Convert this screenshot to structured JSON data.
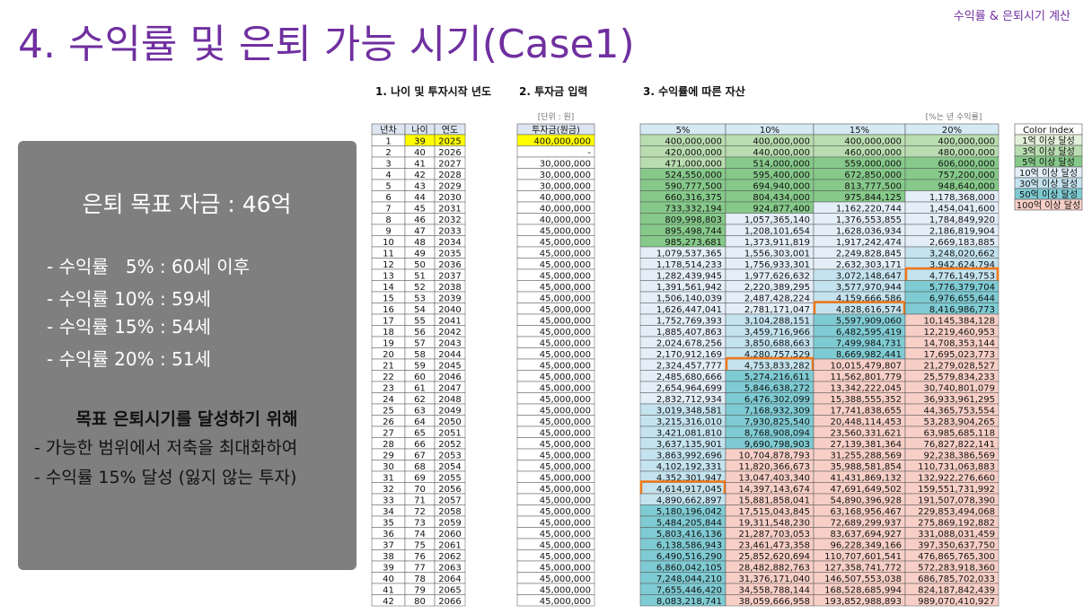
{
  "header": {
    "title": "4. 수익률 및 은퇴 가능 시기(Case1)",
    "top_right": "수익률 & 은퇴시기 계산"
  },
  "summary": {
    "goal": "은퇴 목표 자금 : 46억",
    "items": [
      "- 수익률   5% : 60세 이후",
      "- 수익률 10% : 59세",
      "- 수익률 15% : 54세",
      "- 수익률 20% : 51세"
    ],
    "subheading": "목표 은퇴시기를 달성하기 위해",
    "notes": [
      "- 가능한 범위에서 저축을 최대화하여",
      "- 수익률 15% 달성 (잃지 않는 투자)"
    ]
  },
  "sections": [
    "1. 나이 및 투자시작 년도",
    "2. 투자금 입력",
    "3. 수익률에 따른 자산"
  ],
  "unit_note": "[단위 : 원]",
  "rate_note": "[%는 년 수익률]",
  "table": {
    "columns": [
      "년차",
      "나이",
      "연도",
      "투자금(원금)",
      "5%",
      "10%",
      "15%",
      "20%"
    ],
    "rows": [
      [
        "1",
        "39",
        "2025",
        "400,000,000",
        "400,000,000",
        "400,000,000",
        "400,000,000",
        "400,000,000"
      ],
      [
        "2",
        "40",
        "2026",
        "-",
        "420,000,000",
        "440,000,000",
        "460,000,000",
        "480,000,000"
      ],
      [
        "3",
        "41",
        "2027",
        "30,000,000",
        "471,000,000",
        "514,000,000",
        "559,000,000",
        "606,000,000"
      ],
      [
        "4",
        "42",
        "2028",
        "30,000,000",
        "524,550,000",
        "595,400,000",
        "672,850,000",
        "757,200,000"
      ],
      [
        "5",
        "43",
        "2029",
        "30,000,000",
        "590,777,500",
        "694,940,000",
        "813,777,500",
        "948,640,000"
      ],
      [
        "6",
        "44",
        "2030",
        "40,000,000",
        "660,316,375",
        "804,434,000",
        "975,844,125",
        "1,178,368,000"
      ],
      [
        "7",
        "45",
        "2031",
        "40,000,000",
        "733,332,194",
        "924,877,400",
        "1,162,220,744",
        "1,454,041,600"
      ],
      [
        "8",
        "46",
        "2032",
        "40,000,000",
        "809,998,803",
        "1,057,365,140",
        "1,376,553,855",
        "1,784,849,920"
      ],
      [
        "9",
        "47",
        "2033",
        "45,000,000",
        "895,498,744",
        "1,208,101,654",
        "1,628,036,934",
        "2,186,819,904"
      ],
      [
        "10",
        "48",
        "2034",
        "45,000,000",
        "985,273,681",
        "1,373,911,819",
        "1,917,242,474",
        "2,669,183,885"
      ],
      [
        "11",
        "49",
        "2035",
        "45,000,000",
        "1,079,537,365",
        "1,556,303,001",
        "2,249,828,845",
        "3,248,020,662"
      ],
      [
        "12",
        "50",
        "2036",
        "45,000,000",
        "1,178,514,233",
        "1,756,933,301",
        "2,632,303,171",
        "3,942,624,794"
      ],
      [
        "13",
        "51",
        "2037",
        "45,000,000",
        "1,282,439,945",
        "1,977,626,632",
        "3,072,148,647",
        "4,776,149,753"
      ],
      [
        "14",
        "52",
        "2038",
        "45,000,000",
        "1,391,561,942",
        "2,220,389,295",
        "3,577,970,944",
        "5,776,379,704"
      ],
      [
        "15",
        "53",
        "2039",
        "45,000,000",
        "1,506,140,039",
        "2,487,428,224",
        "4,159,666,586",
        "6,976,655,644"
      ],
      [
        "16",
        "54",
        "2040",
        "45,000,000",
        "1,626,447,041",
        "2,781,171,047",
        "4,828,616,574",
        "8,416,986,773"
      ],
      [
        "17",
        "55",
        "2041",
        "45,000,000",
        "1,752,769,393",
        "3,104,288,151",
        "5,597,909,060",
        "10,145,384,128"
      ],
      [
        "18",
        "56",
        "2042",
        "45,000,000",
        "1,885,407,863",
        "3,459,716,966",
        "6,482,595,419",
        "12,219,460,953"
      ],
      [
        "19",
        "57",
        "2043",
        "45,000,000",
        "2,024,678,256",
        "3,850,688,663",
        "7,499,984,731",
        "14,708,353,144"
      ],
      [
        "20",
        "58",
        "2044",
        "45,000,000",
        "2,170,912,169",
        "4,280,757,529",
        "8,669,982,441",
        "17,695,023,773"
      ],
      [
        "21",
        "59",
        "2045",
        "45,000,000",
        "2,324,457,777",
        "4,753,833,282",
        "10,015,479,807",
        "21,279,028,527"
      ],
      [
        "22",
        "60",
        "2046",
        "45,000,000",
        "2,485,680,666",
        "5,274,216,611",
        "11,562,801,779",
        "25,579,834,233"
      ],
      [
        "23",
        "61",
        "2047",
        "45,000,000",
        "2,654,964,699",
        "5,846,638,272",
        "13,342,222,045",
        "30,740,801,079"
      ],
      [
        "24",
        "62",
        "2048",
        "45,000,000",
        "2,832,712,934",
        "6,476,302,099",
        "15,388,555,352",
        "36,933,961,295"
      ],
      [
        "25",
        "63",
        "2049",
        "45,000,000",
        "3,019,348,581",
        "7,168,932,309",
        "17,741,838,655",
        "44,365,753,554"
      ],
      [
        "26",
        "64",
        "2050",
        "45,000,000",
        "3,215,316,010",
        "7,930,825,540",
        "20,448,114,453",
        "53,283,904,265"
      ],
      [
        "27",
        "65",
        "2051",
        "45,000,000",
        "3,421,081,810",
        "8,768,908,094",
        "23,560,331,621",
        "63,985,685,118"
      ],
      [
        "28",
        "66",
        "2052",
        "45,000,000",
        "3,637,135,901",
        "9,690,798,903",
        "27,139,381,364",
        "76,827,822,141"
      ],
      [
        "29",
        "67",
        "2053",
        "45,000,000",
        "3,863,992,696",
        "10,704,878,793",
        "31,255,288,569",
        "92,238,386,569"
      ],
      [
        "30",
        "68",
        "2054",
        "45,000,000",
        "4,102,192,331",
        "11,820,366,673",
        "35,988,581,854",
        "110,731,063,883"
      ],
      [
        "31",
        "69",
        "2055",
        "45,000,000",
        "4,352,301,947",
        "13,047,403,340",
        "41,431,869,132",
        "132,922,276,660"
      ],
      [
        "32",
        "70",
        "2056",
        "45,000,000",
        "4,614,917,045",
        "14,397,143,674",
        "47,691,649,502",
        "159,551,731,992"
      ],
      [
        "33",
        "71",
        "2057",
        "45,000,000",
        "4,890,662,897",
        "15,881,858,041",
        "54,890,396,928",
        "191,507,078,390"
      ],
      [
        "34",
        "72",
        "2058",
        "45,000,000",
        "5,180,196,042",
        "17,515,043,845",
        "63,168,956,467",
        "229,853,494,068"
      ],
      [
        "35",
        "73",
        "2059",
        "45,000,000",
        "5,484,205,844",
        "19,311,548,230",
        "72,689,299,937",
        "275,869,192,882"
      ],
      [
        "36",
        "74",
        "2060",
        "45,000,000",
        "5,803,416,136",
        "21,287,703,053",
        "83,637,694,927",
        "331,088,031,459"
      ],
      [
        "37",
        "75",
        "2061",
        "45,000,000",
        "6,138,586,943",
        "23,461,473,358",
        "96,228,349,166",
        "397,350,637,750"
      ],
      [
        "38",
        "76",
        "2062",
        "45,000,000",
        "6,490,516,290",
        "25,852,620,694",
        "110,707,601,541",
        "476,865,765,300"
      ],
      [
        "39",
        "77",
        "2063",
        "45,000,000",
        "6,860,042,105",
        "28,482,882,763",
        "127,358,741,772",
        "572,283,918,360"
      ],
      [
        "40",
        "78",
        "2064",
        "45,000,000",
        "7,248,044,210",
        "31,376,171,040",
        "146,507,553,038",
        "686,785,702,033"
      ],
      [
        "41",
        "79",
        "2065",
        "45,000,000",
        "7,655,446,420",
        "34,558,788,144",
        "168,528,685,994",
        "824,187,842,439"
      ],
      [
        "42",
        "80",
        "2066",
        "45,000,000",
        "8,083,218,741",
        "38,059,666,958",
        "193,852,988,893",
        "989,070,410,927"
      ]
    ]
  },
  "legend": {
    "title": "Color Index",
    "items": [
      {
        "label": "1억 이상 달성",
        "color": "#e2efda"
      },
      {
        "label": "3억 이상 달성",
        "color": "#b9ddb0"
      },
      {
        "label": "5억 이상 달성",
        "color": "#86c98a"
      },
      {
        "label": "10억 이상 달성",
        "color": "#e4eef8"
      },
      {
        "label": "30억 이상 달성",
        "color": "#c4e3ef"
      },
      {
        "label": "50억 이상 달성",
        "color": "#7fcbd3"
      },
      {
        "label": "100억 이상 달성",
        "color": "#f7cfc7"
      }
    ]
  }
}
